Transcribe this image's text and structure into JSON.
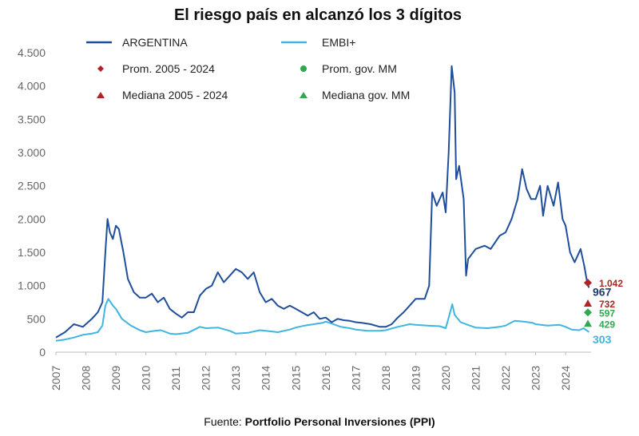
{
  "chart_data": {
    "type": "line",
    "title": "El riesgo país en alcanzó los 3 dígitos",
    "source_prefix": "Fuente: ",
    "source_name": "Portfolio Personal Inversiones (PPI)",
    "xlim": [
      2007,
      2024.85
    ],
    "ylim": [
      0,
      4500
    ],
    "x_ticks": [
      "2007",
      "2008",
      "2009",
      "2010",
      "2011",
      "2012",
      "2013",
      "2014",
      "2015",
      "2016",
      "2017",
      "2018",
      "2019",
      "2020",
      "2021",
      "2022",
      "2023",
      "2024"
    ],
    "y_ticks": [
      {
        "value": 0,
        "label": "0"
      },
      {
        "value": 500,
        "label": "500"
      },
      {
        "value": 1000,
        "label": "1.000"
      },
      {
        "value": 1500,
        "label": "1.500"
      },
      {
        "value": 2000,
        "label": "2.000"
      },
      {
        "value": 2500,
        "label": "2.500"
      },
      {
        "value": 3000,
        "label": "3.000"
      },
      {
        "value": 3500,
        "label": "3.500"
      },
      {
        "value": 4000,
        "label": "4.000"
      },
      {
        "value": 4500,
        "label": "4.500"
      }
    ],
    "legend": {
      "argentina": "ARGENTINA",
      "embi": "EMBI+",
      "prom_arg": "Prom. 2005 - 2024",
      "prom_mm": "Prom. gov. MM",
      "med_arg": "Mediana 2005 - 2024",
      "med_mm": "Mediana gov. MM"
    },
    "series": [
      {
        "name": "ARGENTINA",
        "color": "#1f4e9b",
        "points": [
          [
            2007.0,
            220
          ],
          [
            2007.3,
            300
          ],
          [
            2007.6,
            420
          ],
          [
            2007.9,
            380
          ],
          [
            2008.2,
            500
          ],
          [
            2008.4,
            600
          ],
          [
            2008.55,
            750
          ],
          [
            2008.65,
            1500
          ],
          [
            2008.72,
            2000
          ],
          [
            2008.8,
            1800
          ],
          [
            2008.9,
            1700
          ],
          [
            2009.0,
            1900
          ],
          [
            2009.1,
            1850
          ],
          [
            2009.25,
            1500
          ],
          [
            2009.4,
            1100
          ],
          [
            2009.6,
            900
          ],
          [
            2009.8,
            820
          ],
          [
            2010.0,
            820
          ],
          [
            2010.2,
            880
          ],
          [
            2010.4,
            750
          ],
          [
            2010.6,
            820
          ],
          [
            2010.8,
            650
          ],
          [
            2011.0,
            580
          ],
          [
            2011.2,
            520
          ],
          [
            2011.4,
            600
          ],
          [
            2011.6,
            600
          ],
          [
            2011.8,
            850
          ],
          [
            2012.0,
            950
          ],
          [
            2012.2,
            1000
          ],
          [
            2012.4,
            1200
          ],
          [
            2012.6,
            1050
          ],
          [
            2012.8,
            1150
          ],
          [
            2013.0,
            1250
          ],
          [
            2013.2,
            1200
          ],
          [
            2013.4,
            1100
          ],
          [
            2013.6,
            1200
          ],
          [
            2013.8,
            900
          ],
          [
            2014.0,
            750
          ],
          [
            2014.2,
            800
          ],
          [
            2014.4,
            700
          ],
          [
            2014.6,
            650
          ],
          [
            2014.8,
            700
          ],
          [
            2015.0,
            650
          ],
          [
            2015.2,
            600
          ],
          [
            2015.4,
            550
          ],
          [
            2015.6,
            600
          ],
          [
            2015.8,
            500
          ],
          [
            2016.0,
            520
          ],
          [
            2016.2,
            450
          ],
          [
            2016.4,
            500
          ],
          [
            2016.6,
            480
          ],
          [
            2016.8,
            470
          ],
          [
            2017.0,
            450
          ],
          [
            2017.2,
            440
          ],
          [
            2017.5,
            420
          ],
          [
            2017.8,
            380
          ],
          [
            2018.0,
            380
          ],
          [
            2018.2,
            420
          ],
          [
            2018.4,
            520
          ],
          [
            2018.6,
            600
          ],
          [
            2018.8,
            700
          ],
          [
            2019.0,
            800
          ],
          [
            2019.3,
            800
          ],
          [
            2019.45,
            1000
          ],
          [
            2019.55,
            2400
          ],
          [
            2019.7,
            2200
          ],
          [
            2019.9,
            2400
          ],
          [
            2020.0,
            2100
          ],
          [
            2020.1,
            3000
          ],
          [
            2020.2,
            4300
          ],
          [
            2020.3,
            3900
          ],
          [
            2020.35,
            2600
          ],
          [
            2020.45,
            2800
          ],
          [
            2020.6,
            2300
          ],
          [
            2020.68,
            1150
          ],
          [
            2020.75,
            1400
          ],
          [
            2021.0,
            1550
          ],
          [
            2021.3,
            1600
          ],
          [
            2021.5,
            1550
          ],
          [
            2021.8,
            1750
          ],
          [
            2022.0,
            1800
          ],
          [
            2022.2,
            2000
          ],
          [
            2022.4,
            2300
          ],
          [
            2022.55,
            2750
          ],
          [
            2022.7,
            2450
          ],
          [
            2022.85,
            2300
          ],
          [
            2023.0,
            2300
          ],
          [
            2023.15,
            2500
          ],
          [
            2023.25,
            2050
          ],
          [
            2023.4,
            2500
          ],
          [
            2023.6,
            2200
          ],
          [
            2023.75,
            2550
          ],
          [
            2023.9,
            2000
          ],
          [
            2024.0,
            1900
          ],
          [
            2024.15,
            1500
          ],
          [
            2024.3,
            1350
          ],
          [
            2024.5,
            1550
          ],
          [
            2024.62,
            1300
          ],
          [
            2024.72,
            1050
          ],
          [
            2024.78,
            967
          ]
        ]
      },
      {
        "name": "EMBI+",
        "color": "#3fb5e0",
        "points": [
          [
            2007.0,
            170
          ],
          [
            2007.3,
            190
          ],
          [
            2007.6,
            220
          ],
          [
            2007.9,
            260
          ],
          [
            2008.2,
            280
          ],
          [
            2008.4,
            300
          ],
          [
            2008.55,
            400
          ],
          [
            2008.65,
            700
          ],
          [
            2008.75,
            800
          ],
          [
            2008.9,
            700
          ],
          [
            2009.0,
            650
          ],
          [
            2009.2,
            500
          ],
          [
            2009.5,
            400
          ],
          [
            2009.8,
            330
          ],
          [
            2010.0,
            300
          ],
          [
            2010.3,
            320
          ],
          [
            2010.5,
            330
          ],
          [
            2010.8,
            280
          ],
          [
            2011.0,
            270
          ],
          [
            2011.4,
            290
          ],
          [
            2011.8,
            380
          ],
          [
            2012.0,
            360
          ],
          [
            2012.4,
            370
          ],
          [
            2012.8,
            320
          ],
          [
            2013.0,
            280
          ],
          [
            2013.4,
            290
          ],
          [
            2013.8,
            330
          ],
          [
            2014.0,
            320
          ],
          [
            2014.4,
            300
          ],
          [
            2014.8,
            340
          ],
          [
            2015.0,
            370
          ],
          [
            2015.3,
            400
          ],
          [
            2015.6,
            420
          ],
          [
            2015.9,
            440
          ],
          [
            2016.0,
            460
          ],
          [
            2016.2,
            430
          ],
          [
            2016.5,
            380
          ],
          [
            2016.8,
            360
          ],
          [
            2017.0,
            340
          ],
          [
            2017.4,
            320
          ],
          [
            2017.8,
            320
          ],
          [
            2018.0,
            330
          ],
          [
            2018.4,
            380
          ],
          [
            2018.8,
            420
          ],
          [
            2019.0,
            410
          ],
          [
            2019.4,
            400
          ],
          [
            2019.8,
            390
          ],
          [
            2020.0,
            360
          ],
          [
            2020.15,
            600
          ],
          [
            2020.22,
            720
          ],
          [
            2020.3,
            560
          ],
          [
            2020.5,
            450
          ],
          [
            2020.8,
            400
          ],
          [
            2021.0,
            370
          ],
          [
            2021.4,
            360
          ],
          [
            2021.8,
            380
          ],
          [
            2022.0,
            400
          ],
          [
            2022.3,
            470
          ],
          [
            2022.6,
            460
          ],
          [
            2022.9,
            440
          ],
          [
            2023.0,
            420
          ],
          [
            2023.4,
            400
          ],
          [
            2023.8,
            410
          ],
          [
            2024.0,
            380
          ],
          [
            2024.2,
            340
          ],
          [
            2024.45,
            330
          ],
          [
            2024.6,
            360
          ],
          [
            2024.78,
            303
          ]
        ]
      }
    ],
    "end_values": [
      {
        "id": "prom_arg",
        "value": 1042,
        "label": "1.042",
        "color": "#b22222",
        "marker": "diamond"
      },
      {
        "id": "arg_last",
        "value": 967,
        "label": "967",
        "color": "#1f3a6b",
        "marker": "none"
      },
      {
        "id": "med_arg",
        "value": 732,
        "label": "732",
        "color": "#b22222",
        "marker": "triangle"
      },
      {
        "id": "prom_mm",
        "value": 597,
        "label": "597",
        "color": "#2fa84f",
        "marker": "diamond"
      },
      {
        "id": "med_mm",
        "value": 429,
        "label": "429",
        "color": "#2fa84f",
        "marker": "triangle"
      },
      {
        "id": "embi_last",
        "value": 303,
        "label": "303",
        "color": "#3fb5e0",
        "marker": "none"
      }
    ],
    "legend_marker_colors": {
      "prom_arg": "#b22222",
      "prom_mm": "#2fa84f",
      "med_arg": "#b22222",
      "med_mm": "#2fa84f"
    }
  }
}
